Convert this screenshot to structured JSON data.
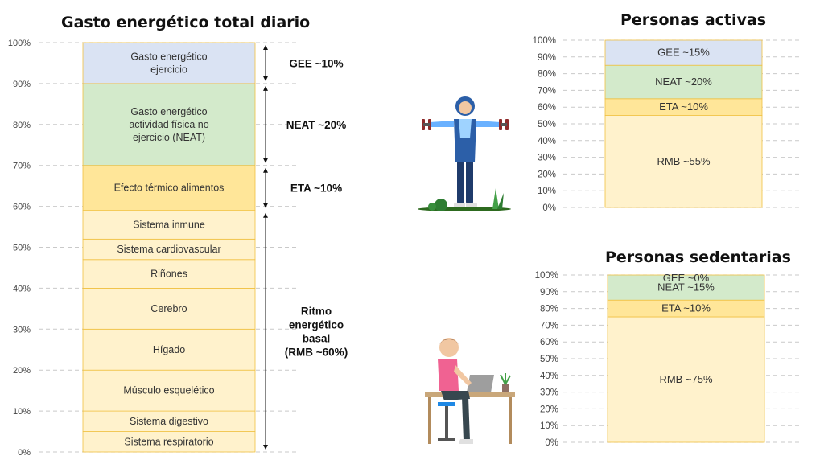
{
  "colors": {
    "gee": "#dae3f3",
    "neat": "#d3eacb",
    "eta": "#ffe699",
    "rmb": "#fff2cc",
    "border": "#f0c040",
    "grid": "#c9c9c9",
    "axis_text": "#444444"
  },
  "chart_data": [
    {
      "type": "stacked_bar",
      "title": "Gasto energético total diario",
      "ylim": [
        0,
        100
      ],
      "yticks": [
        "100%",
        "90%",
        "80%",
        "70%",
        "60%",
        "50%",
        "40%",
        "30%",
        "20%",
        "10%",
        "0%"
      ],
      "grid": true,
      "segments": [
        {
          "label": "Sistema respiratorio",
          "from": 0,
          "to": 5,
          "color": "rmb"
        },
        {
          "label": "Sistema digestivo",
          "from": 5,
          "to": 10,
          "color": "rmb"
        },
        {
          "label": "Músculo esquelético",
          "from": 10,
          "to": 20,
          "color": "rmb"
        },
        {
          "label": "Hígado",
          "from": 20,
          "to": 30,
          "color": "rmb"
        },
        {
          "label": "Cerebro",
          "from": 30,
          "to": 40,
          "color": "rmb"
        },
        {
          "label": "Riñones",
          "from": 40,
          "to": 47,
          "color": "rmb"
        },
        {
          "label": "Sistema cardiovascular",
          "from": 47,
          "to": 52,
          "color": "rmb"
        },
        {
          "label": "Sistema inmune",
          "from": 52,
          "to": 59,
          "color": "rmb"
        },
        {
          "label": "Efecto térmico alimentos",
          "from": 59,
          "to": 70,
          "color": "eta"
        },
        {
          "label": "Gasto energético actividad física no ejercicio (NEAT)",
          "lines": [
            "Gasto energético",
            "actividad física no",
            "ejercicio (NEAT)"
          ],
          "from": 70,
          "to": 90,
          "color": "neat"
        },
        {
          "label": "Gasto energético ejercicio",
          "lines": [
            "Gasto energético",
            "ejercicio"
          ],
          "from": 90,
          "to": 100,
          "color": "gee"
        }
      ],
      "annotations": [
        {
          "lines": [
            "GEE ~10%"
          ],
          "from": 90,
          "to": 100
        },
        {
          "lines": [
            "NEAT ~20%"
          ],
          "from": 70,
          "to": 90
        },
        {
          "lines": [
            "ETA ~10%"
          ],
          "from": 59,
          "to": 70
        },
        {
          "lines": [
            "Ritmo",
            "energético",
            "basal",
            "(RMB ~60%)"
          ],
          "from": 0,
          "to": 59
        }
      ]
    },
    {
      "type": "stacked_bar",
      "title": "Personas activas",
      "ylim": [
        0,
        100
      ],
      "yticks": [
        "100%",
        "90%",
        "80%",
        "70%",
        "60%",
        "50%",
        "40%",
        "30%",
        "20%",
        "10%",
        "0%"
      ],
      "grid": true,
      "segments": [
        {
          "label": "RMB ~55%",
          "from": 0,
          "to": 55,
          "color": "rmb"
        },
        {
          "label": "ETA ~10%",
          "from": 55,
          "to": 65,
          "color": "eta"
        },
        {
          "label": "NEAT ~20%",
          "from": 65,
          "to": 85,
          "color": "neat"
        },
        {
          "label": "GEE ~15%",
          "from": 85,
          "to": 100,
          "color": "gee"
        }
      ]
    },
    {
      "type": "stacked_bar",
      "title": "Personas sedentarias",
      "ylim": [
        0,
        100
      ],
      "yticks": [
        "100%",
        "90%",
        "80%",
        "70%",
        "60%",
        "50%",
        "40%",
        "30%",
        "20%",
        "10%",
        "0%"
      ],
      "grid": true,
      "segments": [
        {
          "label": "RMB ~75%",
          "from": 0,
          "to": 75,
          "color": "rmb"
        },
        {
          "label": "ETA ~10%",
          "from": 75,
          "to": 85,
          "color": "eta"
        },
        {
          "label": "NEAT ~15%",
          "from": 85,
          "to": 100,
          "color": "neat"
        },
        {
          "label": "GEE ~0%",
          "from": 100,
          "to": 100,
          "color": "gee"
        }
      ]
    }
  ]
}
